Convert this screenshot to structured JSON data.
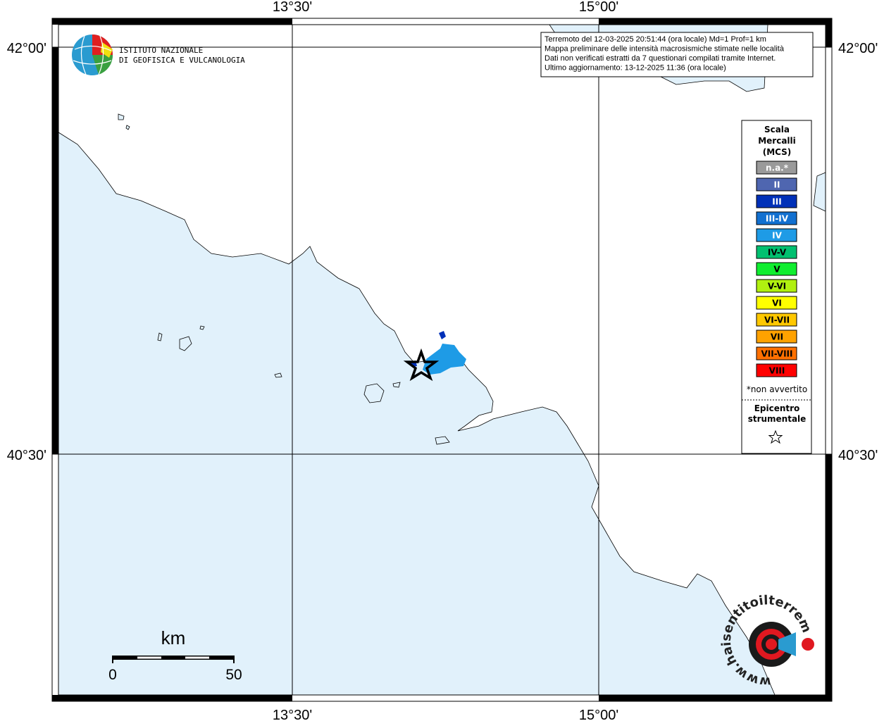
{
  "map": {
    "lon_labels": [
      "13°30'",
      "15°00'"
    ],
    "lat_labels": [
      "42°00'",
      "40°30'"
    ],
    "info": [
      "Terremoto del 12-03-2025 20:51:44 (ora locale) Md=1 Prof=1 km",
      "Mappa preliminare delle intensità macrosismiche stimate nelle località",
      "Dati non verificati estratti da 7 questionari compilati tramite Internet.",
      "Ultimo aggiornamento: 13-12-2025 11:36 (ora locale)"
    ],
    "logo": [
      "ISTITUTO NAZIONALE",
      "DI GEOFISICA E VULCANOLOGIA"
    ],
    "legend": {
      "title": [
        "Scala",
        "Mercalli",
        "(MCS)"
      ],
      "items": [
        {
          "label": "n.a.*",
          "color": "#9a9a9a",
          "text_color": "#ffffff"
        },
        {
          "label": "II",
          "color": "#4f66b0",
          "text_color": "#ffffff"
        },
        {
          "label": "III",
          "color": "#0030b8",
          "text_color": "#ffffff"
        },
        {
          "label": "III-IV",
          "color": "#1270d0",
          "text_color": "#ffffff"
        },
        {
          "label": "IV",
          "color": "#1e9be6",
          "text_color": "#ffffff"
        },
        {
          "label": "IV-V",
          "color": "#00c070",
          "text_color": "#000000"
        },
        {
          "label": "V",
          "color": "#10ee30",
          "text_color": "#000000"
        },
        {
          "label": "V-VI",
          "color": "#b0f010",
          "text_color": "#000000"
        },
        {
          "label": "VI",
          "color": "#ffff00",
          "text_color": "#000000"
        },
        {
          "label": "VI-VII",
          "color": "#ffc800",
          "text_color": "#000000"
        },
        {
          "label": "VII",
          "color": "#ffa200",
          "text_color": "#000000"
        },
        {
          "label": "VII-VIII",
          "color": "#ff7000",
          "text_color": "#000000"
        },
        {
          "label": "VIII",
          "color": "#ff0000",
          "text_color": "#000000"
        }
      ],
      "note": "*non avvertito",
      "epicenter": [
        "Epicentro",
        "strumentale"
      ]
    },
    "scale": {
      "unit": "km",
      "labels": [
        "0",
        "50"
      ]
    },
    "badge": "www.haisentitoilterremoto.it"
  }
}
